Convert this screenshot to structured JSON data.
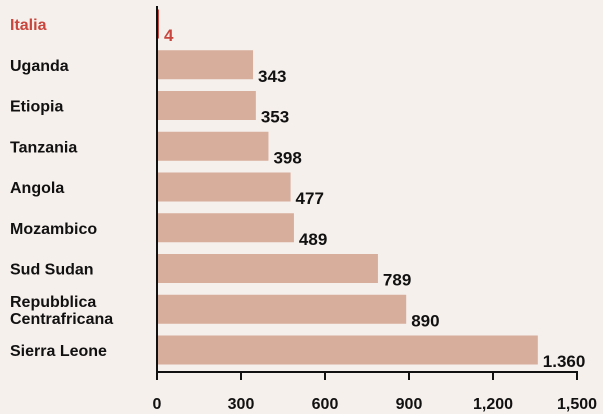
{
  "chart_data": {
    "type": "bar",
    "orientation": "horizontal",
    "title": "",
    "xlabel": "",
    "ylabel": "",
    "categories": [
      "Italia",
      "Uganda",
      "Etiopia",
      "Tanzania",
      "Angola",
      "Mozambico",
      "Sud Sudan",
      "Repubblica Centrafricana",
      "Sierra Leone"
    ],
    "category_lines": [
      [
        "Italia"
      ],
      [
        "Uganda"
      ],
      [
        "Etiopia"
      ],
      [
        "Tanzania"
      ],
      [
        "Angola"
      ],
      [
        "Mozambico"
      ],
      [
        "Sud Sudan"
      ],
      [
        "Repubblica",
        "Centrafricana"
      ],
      [
        "Sierra Leone"
      ]
    ],
    "values": [
      4,
      343,
      353,
      398,
      477,
      489,
      789,
      890,
      1360
    ],
    "value_labels": [
      "4",
      "343",
      "353",
      "398",
      "477",
      "489",
      "789",
      "890",
      "1.360"
    ],
    "xlim": [
      0,
      1500
    ],
    "xticks": [
      0,
      300,
      600,
      900,
      1200,
      1500
    ],
    "xtick_labels": [
      "0",
      "300",
      "600",
      "900",
      "1,200",
      "1,500"
    ],
    "grid": false,
    "legend": "none",
    "highlight": "Italia",
    "colors": {
      "bar": "#d7ad9b",
      "highlight": "#c8463d",
      "text": "#111111",
      "axis": "#111111",
      "background": "#f6f0ec"
    }
  }
}
